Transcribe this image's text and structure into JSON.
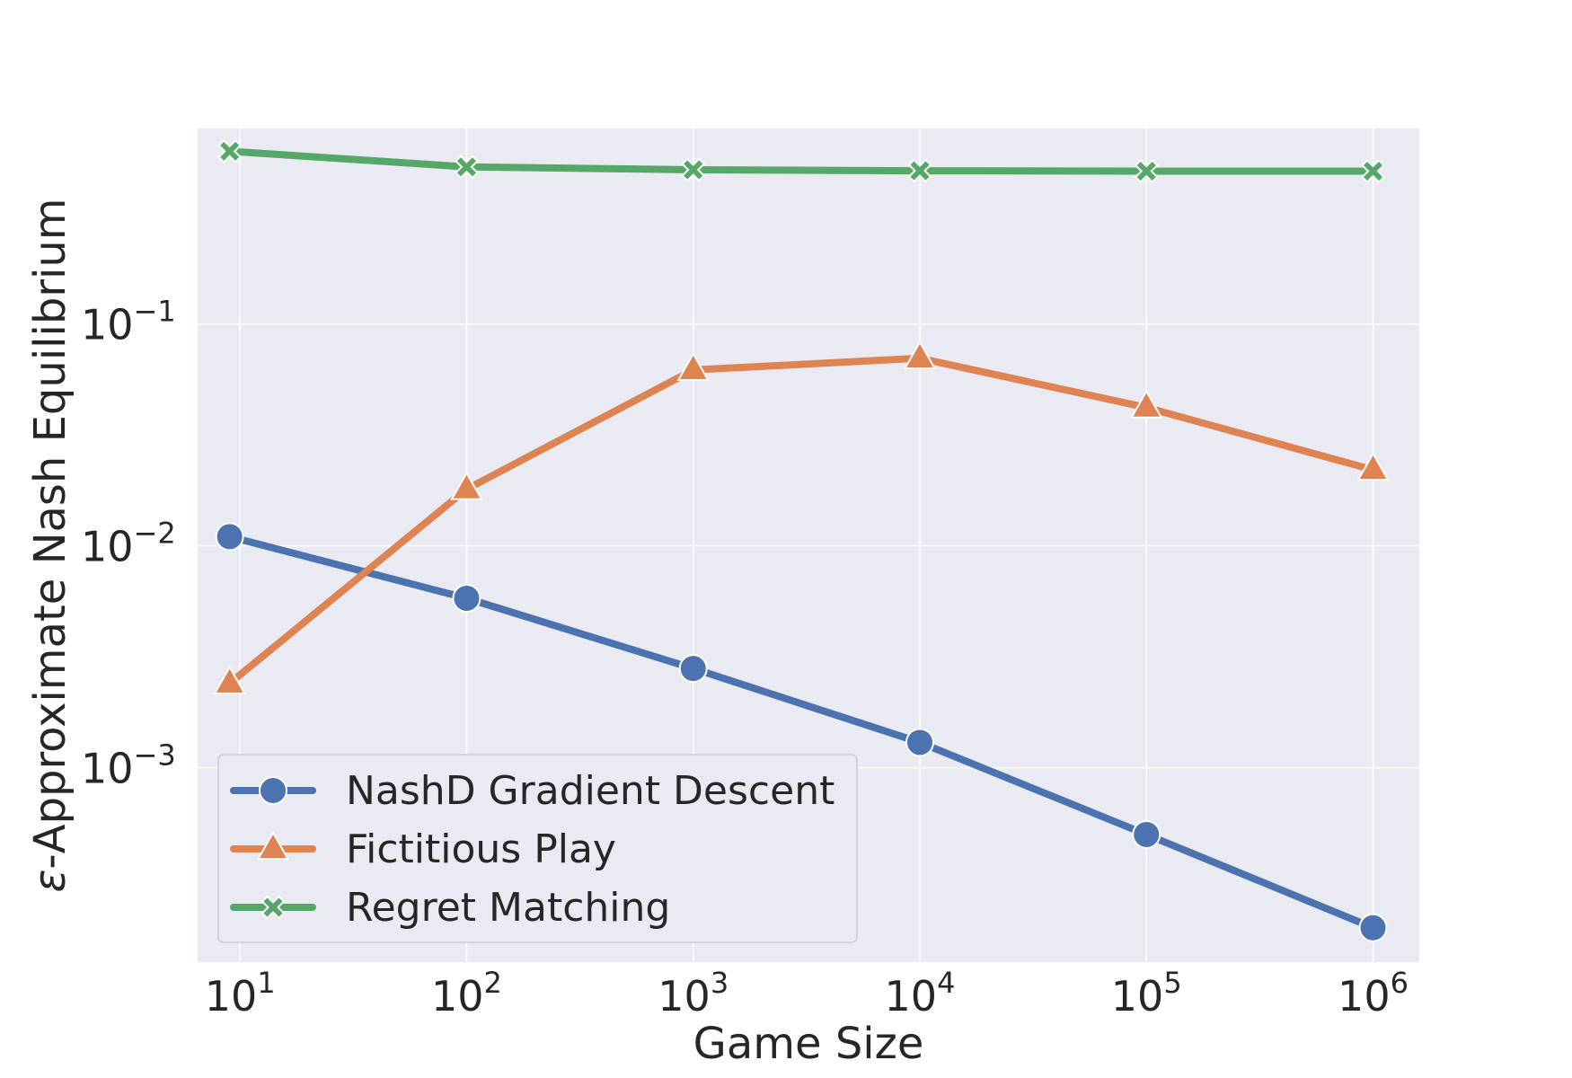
{
  "chart_data": {
    "type": "line",
    "xlabel": "Game Size",
    "ylabel_symbol": "ε",
    "ylabel_text": "-Approximate Nash Equilibrium",
    "x_scale": "log",
    "y_scale": "log",
    "xlim": [
      6.5,
      1600000
    ],
    "ylim": [
      0.000133,
      0.76
    ],
    "grid": true,
    "legend_position": "lower-left",
    "x_ticks": [
      {
        "base": "10",
        "exp": "1",
        "value": 10
      },
      {
        "base": "10",
        "exp": "2",
        "value": 100
      },
      {
        "base": "10",
        "exp": "3",
        "value": 1000
      },
      {
        "base": "10",
        "exp": "4",
        "value": 10000
      },
      {
        "base": "10",
        "exp": "5",
        "value": 100000
      },
      {
        "base": "10",
        "exp": "6",
        "value": 1000000
      }
    ],
    "y_ticks": [
      {
        "base": "10",
        "exp": "−1",
        "value": 0.1
      },
      {
        "base": "10",
        "exp": "−2",
        "value": 0.01
      },
      {
        "base": "10",
        "exp": "−3",
        "value": 0.001
      }
    ],
    "x": [
      9,
      100,
      1000,
      10000,
      100000,
      1000000
    ],
    "series": [
      {
        "name": "NashD Gradient Descent",
        "marker": "circle",
        "color": "#4C72B0",
        "values": [
          0.011,
          0.0058,
          0.0028,
          0.0013,
          0.0005,
          0.00019
        ]
      },
      {
        "name": "Fictitious Play",
        "marker": "triangle",
        "color": "#DD8452",
        "values": [
          0.0024,
          0.018,
          0.062,
          0.07,
          0.042,
          0.022
        ]
      },
      {
        "name": "Regret Matching",
        "marker": "x",
        "color": "#55A868",
        "values": [
          0.6,
          0.51,
          0.495,
          0.49,
          0.488,
          0.488
        ]
      }
    ]
  },
  "colors": {
    "plot_background": "#EAEAF2",
    "grid": "#FFFFFF",
    "text": "#262626"
  }
}
